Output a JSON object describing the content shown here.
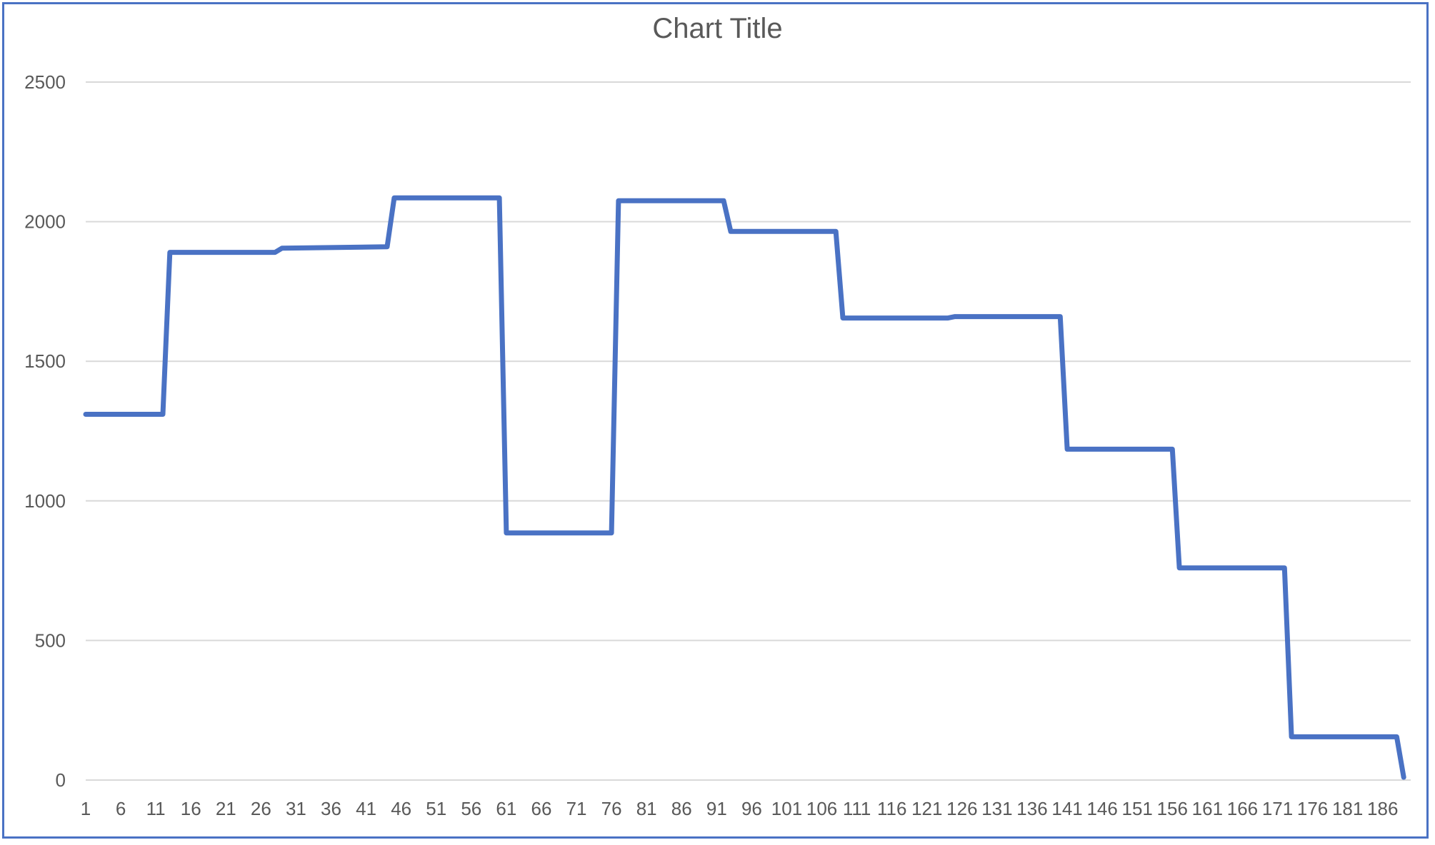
{
  "chart_data": {
    "type": "line",
    "title": "Chart Title",
    "xlabel": "",
    "ylabel": "",
    "ylim": [
      0,
      2500
    ],
    "yticks": [
      0,
      500,
      1000,
      1500,
      2000,
      2500
    ],
    "xtick_labels": [
      "1",
      "6",
      "11",
      "16",
      "21",
      "26",
      "31",
      "36",
      "41",
      "46",
      "51",
      "56",
      "61",
      "66",
      "71",
      "76",
      "81",
      "86",
      "91",
      "96",
      "101",
      "106",
      "111",
      "116",
      "121",
      "126",
      "131",
      "136",
      "141",
      "146",
      "151",
      "156",
      "161",
      "166",
      "171",
      "176",
      "181",
      "186"
    ],
    "grid": true,
    "legend": "none",
    "line_color": "#4a72c4",
    "x": [
      1,
      12,
      13,
      28,
      29,
      44,
      45,
      60,
      61,
      76,
      77,
      92,
      93,
      108,
      109,
      124,
      125,
      140,
      141,
      156,
      157,
      172,
      173,
      188,
      189
    ],
    "values": [
      1310,
      1310,
      1890,
      1890,
      1905,
      1910,
      2085,
      2085,
      885,
      885,
      2075,
      2075,
      1965,
      1965,
      1655,
      1655,
      1660,
      1660,
      1185,
      1185,
      760,
      760,
      155,
      155,
      10
    ]
  }
}
